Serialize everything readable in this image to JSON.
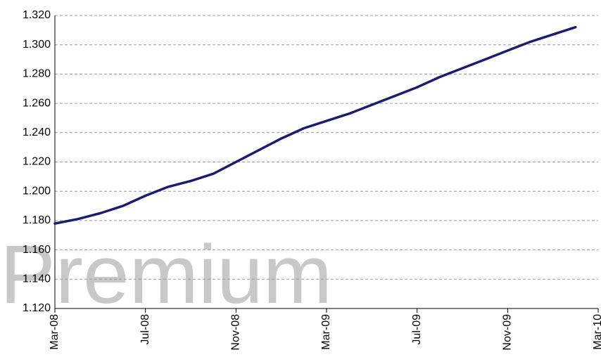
{
  "chart_data": {
    "type": "line",
    "watermark": "Premium",
    "categories": [
      "Mar-08",
      null,
      null,
      null,
      "Jul-08",
      null,
      null,
      null,
      "Nov-08",
      null,
      null,
      null,
      "Mar-09",
      null,
      null,
      null,
      "Jul-09",
      null,
      null,
      null,
      "Nov-09",
      null,
      null,
      null,
      "Mar-10"
    ],
    "series": [
      {
        "color": "#1c1c70",
        "values": [
          1.178,
          1.181,
          1.185,
          1.19,
          1.197,
          1.203,
          1.207,
          1.212,
          1.22,
          1.228,
          1.236,
          1.243,
          1.248,
          1.253,
          1.259,
          1.265,
          1.271,
          1.278,
          1.284,
          1.29,
          1.296,
          1.302,
          1.307,
          1.312,
          null
        ]
      }
    ],
    "ylim": [
      1.12,
      1.32
    ],
    "yticks": [
      {
        "value": 1.12,
        "label": "1.120"
      },
      {
        "value": 1.14,
        "label": "1.140"
      },
      {
        "value": 1.16,
        "label": "1.160"
      },
      {
        "value": 1.18,
        "label": "1.180"
      },
      {
        "value": 1.2,
        "label": "1.200"
      },
      {
        "value": 1.22,
        "label": "1.220"
      },
      {
        "value": 1.24,
        "label": "1.240"
      },
      {
        "value": 1.26,
        "label": "1.260"
      },
      {
        "value": 1.28,
        "label": "1.280"
      },
      {
        "value": 1.3,
        "label": "1.300"
      },
      {
        "value": 1.32,
        "label": "1.320"
      }
    ],
    "grid": true
  }
}
